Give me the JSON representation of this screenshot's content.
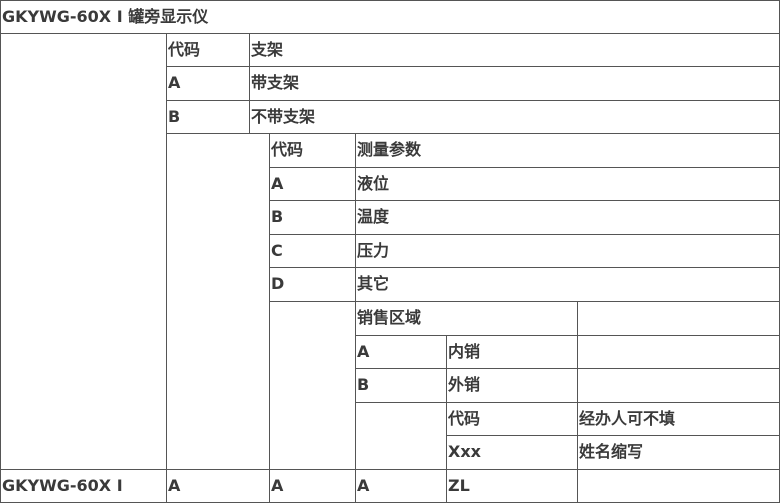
{
  "title": "GKYWG-60X I 罐旁显示仪",
  "bracket": {
    "header_code": "代码",
    "header_name": "支架",
    "options": [
      {
        "code": "A",
        "label": "带支架"
      },
      {
        "code": "B",
        "label": "不带支架"
      }
    ]
  },
  "measure": {
    "header_code": "代码",
    "header_name": "测量参数",
    "options": [
      {
        "code": "A",
        "label": "液位"
      },
      {
        "code": "B",
        "label": "温度"
      },
      {
        "code": "C",
        "label": "压力"
      },
      {
        "code": "D",
        "label": "其它"
      }
    ]
  },
  "sales": {
    "header": "销售区域",
    "options": [
      {
        "code": "A",
        "label": "内销"
      },
      {
        "code": "B",
        "label": "外销"
      }
    ]
  },
  "agent": {
    "header_code": "代码",
    "header_name": "经办人可不填",
    "code": "Xxx",
    "label": "姓名缩写"
  },
  "example": [
    "GKYWG-60X I",
    "A",
    "A",
    "A",
    "ZL",
    ""
  ]
}
